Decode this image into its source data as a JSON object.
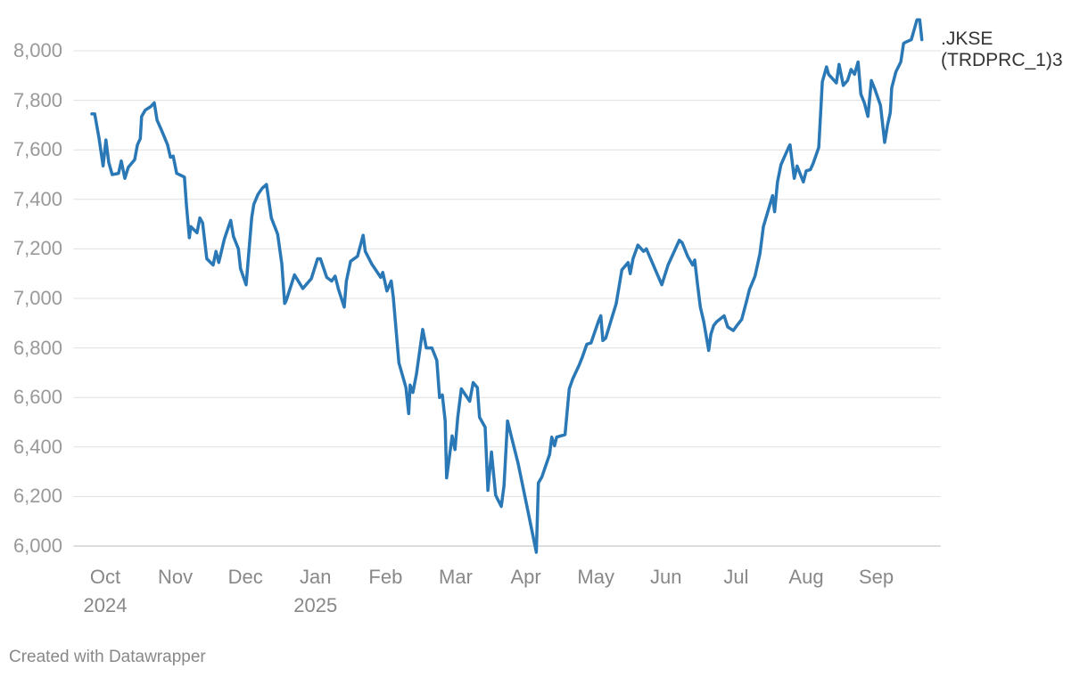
{
  "chart_data": {
    "type": "line",
    "series": [
      {
        "name": ".JKSE\n(TRDPRC_1)3",
        "color": "#2a78b5",
        "x": [
          -0.19,
          -0.15,
          -0.09,
          -0.03,
          0.01,
          0.05,
          0.1,
          0.19,
          0.23,
          0.28,
          0.33,
          0.42,
          0.46,
          0.5,
          0.52,
          0.57,
          0.65,
          0.7,
          0.74,
          0.81,
          0.89,
          0.93,
          0.97,
          1.02,
          1.13,
          1.16,
          1.2,
          1.22,
          1.31,
          1.35,
          1.39,
          1.45,
          1.54,
          1.58,
          1.62,
          1.7,
          1.79,
          1.83,
          1.9,
          1.93,
          2.01,
          2.09,
          2.12,
          2.18,
          2.24,
          2.3,
          2.37,
          2.46,
          2.52,
          2.56,
          2.58,
          2.7,
          2.82,
          2.94,
          3.03,
          3.07,
          3.16,
          3.23,
          3.28,
          3.33,
          3.41,
          3.44,
          3.5,
          3.6,
          3.68,
          3.71,
          3.8,
          3.93,
          3.96,
          4.02,
          4.08,
          4.11,
          4.19,
          4.29,
          4.33,
          4.35,
          4.39,
          4.44,
          4.53,
          4.58,
          4.66,
          4.73,
          4.77,
          4.81,
          4.85,
          4.87,
          4.95,
          4.99,
          5.03,
          5.08,
          5.2,
          5.25,
          5.31,
          5.34,
          5.42,
          5.46,
          5.51,
          5.57,
          5.65,
          5.69,
          5.74,
          5.81,
          5.89,
          6.02,
          6.15,
          6.18,
          6.23,
          6.34,
          6.37,
          6.41,
          6.44,
          6.56,
          6.62,
          6.67,
          6.76,
          6.81,
          6.87,
          6.93,
          7.04,
          7.07,
          7.1,
          7.14,
          7.29,
          7.37,
          7.46,
          7.49,
          7.53,
          7.6,
          7.68,
          7.72,
          7.94,
          8.03,
          8.19,
          8.23,
          8.31,
          8.38,
          8.41,
          8.45,
          8.49,
          8.54,
          8.61,
          8.64,
          8.68,
          8.72,
          8.83,
          8.88,
          8.96,
          9.01,
          9.08,
          9.15,
          9.19,
          9.27,
          9.34,
          9.39,
          9.52,
          9.55,
          9.59,
          9.64,
          9.75,
          9.77,
          9.83,
          9.87,
          9.96,
          10.0,
          10.06,
          10.1,
          10.18,
          10.23,
          10.29,
          10.32,
          10.43,
          10.47,
          10.53,
          10.59,
          10.64,
          10.69,
          10.74,
          10.78,
          10.83,
          10.88,
          10.93,
          10.98,
          11.06,
          11.12,
          11.16,
          11.2,
          11.22,
          11.28,
          11.35,
          11.39,
          11.42,
          11.5,
          11.58,
          11.62,
          11.65
        ],
        "values": [
          7745,
          7745,
          7650,
          7535,
          7640,
          7550,
          7500,
          7505,
          7555,
          7485,
          7530,
          7560,
          7620,
          7645,
          7735,
          7760,
          7775,
          7790,
          7720,
          7675,
          7620,
          7570,
          7575,
          7505,
          7490,
          7375,
          7245,
          7290,
          7265,
          7325,
          7305,
          7160,
          7135,
          7190,
          7145,
          7240,
          7315,
          7250,
          7200,
          7120,
          7055,
          7325,
          7380,
          7420,
          7445,
          7460,
          7325,
          7260,
          7140,
          6980,
          6990,
          7095,
          7040,
          7080,
          7160,
          7160,
          7085,
          7070,
          7090,
          7035,
          6965,
          7070,
          7150,
          7170,
          7255,
          7190,
          7140,
          7085,
          7105,
          7030,
          7070,
          7005,
          6740,
          6640,
          6535,
          6650,
          6620,
          6695,
          6875,
          6800,
          6800,
          6750,
          6600,
          6610,
          6505,
          6275,
          6445,
          6390,
          6520,
          6635,
          6585,
          6660,
          6640,
          6520,
          6480,
          6225,
          6380,
          6205,
          6160,
          6245,
          6505,
          6425,
          6335,
          6155,
          5975,
          6255,
          6280,
          6370,
          6440,
          6405,
          6440,
          6450,
          6635,
          6675,
          6730,
          6765,
          6815,
          6820,
          6910,
          6930,
          6830,
          6840,
          6980,
          7115,
          7145,
          7100,
          7160,
          7215,
          7190,
          7200,
          7055,
          7135,
          7235,
          7225,
          7170,
          7135,
          7155,
          7055,
          6965,
          6905,
          6790,
          6855,
          6890,
          6905,
          6930,
          6885,
          6870,
          6890,
          6915,
          6990,
          7035,
          7090,
          7180,
          7290,
          7415,
          7350,
          7470,
          7540,
          7610,
          7620,
          7485,
          7535,
          7470,
          7515,
          7520,
          7545,
          7610,
          7875,
          7935,
          7905,
          7870,
          7945,
          7860,
          7880,
          7925,
          7905,
          7955,
          7825,
          7790,
          7735,
          7880,
          7845,
          7780,
          7630,
          7700,
          7750,
          7850,
          7915,
          7955,
          8030,
          8035,
          8045,
          8125,
          8125,
          8045
        ]
      }
    ],
    "xlim": [
      -0.45,
      11.92
    ],
    "xticks": [
      {
        "value": 0,
        "label": "Oct\n2024"
      },
      {
        "value": 1,
        "label": "Nov"
      },
      {
        "value": 2,
        "label": "Dec"
      },
      {
        "value": 3,
        "label": "Jan\n2025"
      },
      {
        "value": 4,
        "label": "Feb"
      },
      {
        "value": 5,
        "label": "Mar"
      },
      {
        "value": 6,
        "label": "Apr"
      },
      {
        "value": 7,
        "label": "May"
      },
      {
        "value": 8,
        "label": "Jun"
      },
      {
        "value": 9,
        "label": "Jul"
      },
      {
        "value": 10,
        "label": "Aug"
      },
      {
        "value": 11,
        "label": "Sep"
      }
    ],
    "ylim": [
      6000,
      8000
    ],
    "yticks": [
      {
        "value": 6000,
        "label": "6,000"
      },
      {
        "value": 6200,
        "label": "6,200"
      },
      {
        "value": 6400,
        "label": "6,400"
      },
      {
        "value": 6600,
        "label": "6,600"
      },
      {
        "value": 6800,
        "label": "6,800"
      },
      {
        "value": 7000,
        "label": "7,000"
      },
      {
        "value": 7200,
        "label": "7,200"
      },
      {
        "value": 7400,
        "label": "7,400"
      },
      {
        "value": 7600,
        "label": "7,600"
      },
      {
        "value": 7800,
        "label": "7,800"
      },
      {
        "value": 8000,
        "label": "8,000"
      }
    ],
    "grid": true,
    "source": "Created with Datawrapper"
  }
}
